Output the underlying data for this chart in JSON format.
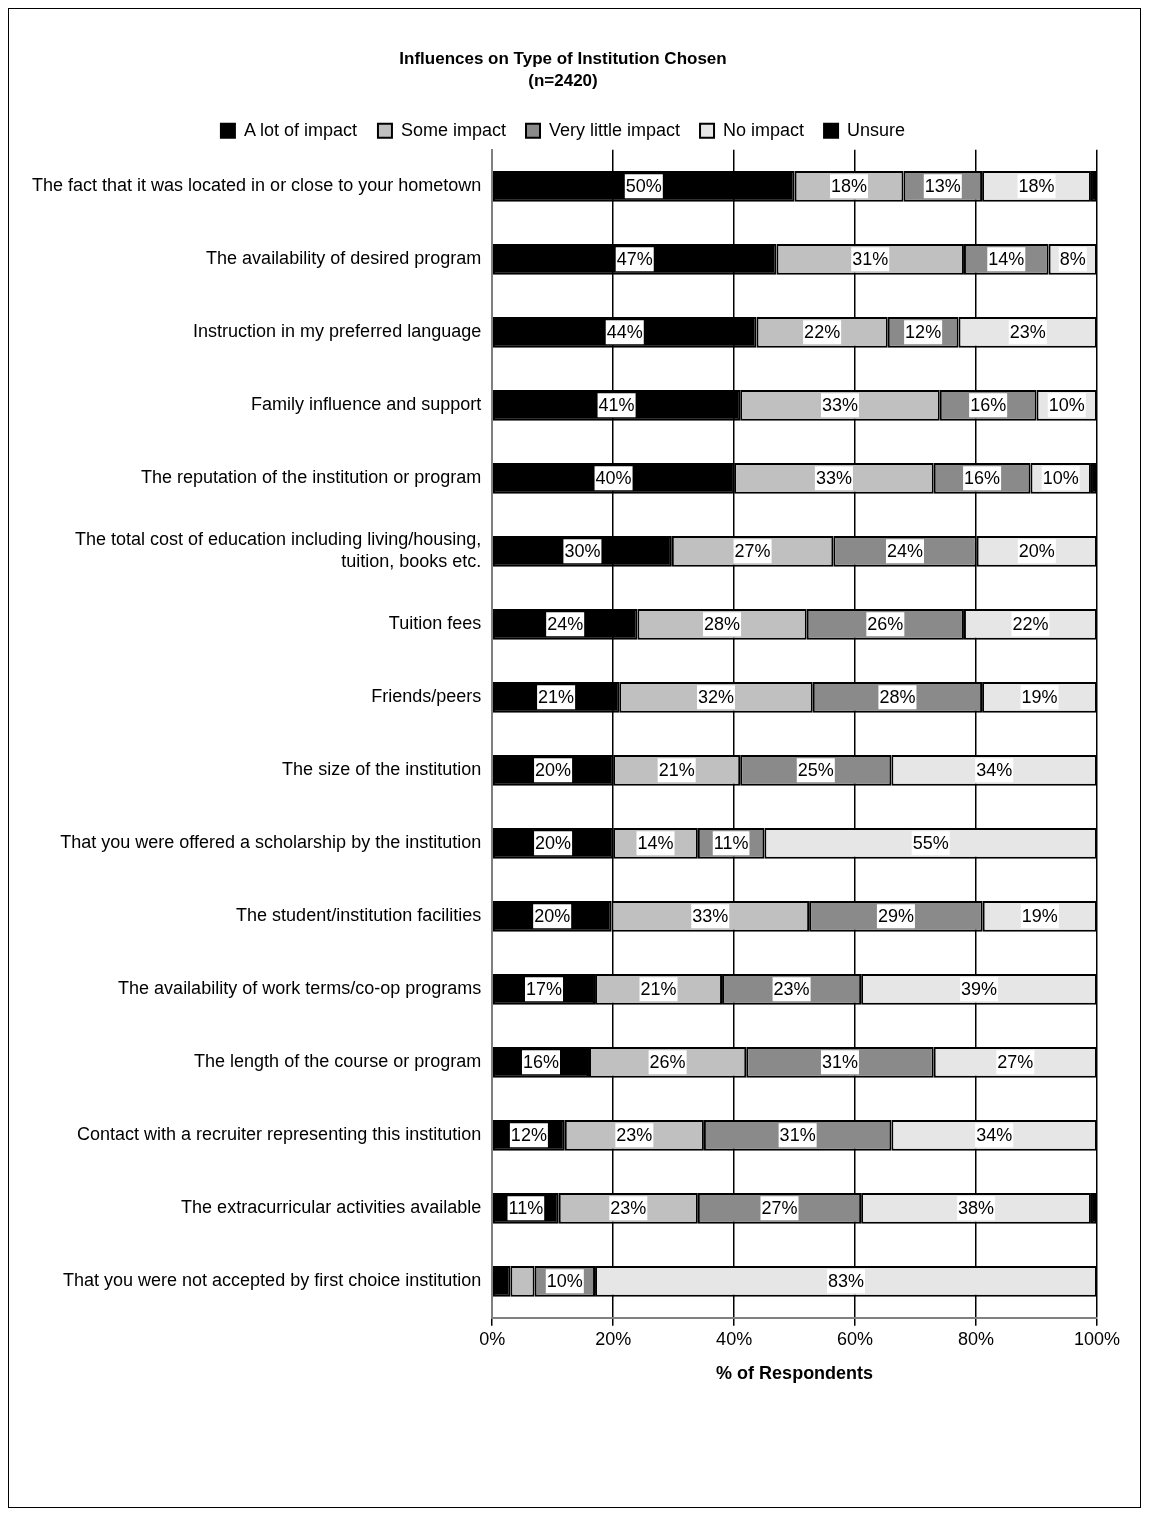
{
  "chart_data": {
    "type": "bar",
    "orientation": "horizontal",
    "stacked": true,
    "title": "Influences on Type of Institution Chosen",
    "subtitle": "(n=2420)",
    "xlabel": "% of Respondents",
    "categories": [
      "The fact that it was located in or close to your hometown",
      "The availability of desired program",
      "Instruction in my preferred language",
      "Family influence and support",
      "The reputation of the institution or program",
      "The total cost of education including living/housing, tuition, books etc.",
      "Tuition fees",
      "Friends/peers",
      "The size of the institution",
      "That you were offered a scholarship by the institution",
      "The student/institution facilities",
      "The availability of work terms/co-op programs",
      "The length of the course or program",
      "Contact with a recruiter representing this institution",
      "The extracurricular activities available",
      "That you were not accepted by first choice institution"
    ],
    "series": [
      {
        "name": "A lot of impact",
        "color": "#000000",
        "values": [
          50,
          47,
          43.7,
          41,
          40,
          29.7,
          24,
          21,
          20,
          20,
          19.7,
          17,
          16,
          12,
          11,
          3
        ],
        "value_labels": [
          "50%",
          "47%",
          "44%",
          "41%",
          "40%",
          "30%",
          "24%",
          "21%",
          "20%",
          "20%",
          "20%",
          "17%",
          "16%",
          "12%",
          "11%",
          null
        ]
      },
      {
        "name": "Some impact",
        "color": "#c0c0c0",
        "values": [
          18,
          31,
          21.7,
          33,
          33,
          26.7,
          28,
          32,
          21,
          14,
          32.7,
          21,
          26,
          23,
          23,
          4
        ],
        "value_labels": [
          "18%",
          "31%",
          "22%",
          "33%",
          "33%",
          "27%",
          "28%",
          "32%",
          "21%",
          "14%",
          "33%",
          "21%",
          "26%",
          "23%",
          "23%",
          null
        ]
      },
      {
        "name": "Very little impact",
        "color": "#8a8a8a",
        "values": [
          13,
          14,
          11.7,
          16,
          16,
          23.7,
          26,
          28,
          25,
          11,
          28.7,
          23,
          31,
          31,
          27,
          10
        ],
        "value_labels": [
          "13%",
          "14%",
          "12%",
          "16%",
          "16%",
          "24%",
          "26%",
          "28%",
          "25%",
          "11%",
          "29%",
          "23%",
          "31%",
          "31%",
          "27%",
          "10%"
        ]
      },
      {
        "name": "No impact",
        "color": "#e6e6e6",
        "values": [
          18,
          8,
          22.9,
          10,
          10,
          19.9,
          22,
          19,
          34,
          55,
          18.9,
          39,
          27,
          34,
          38,
          83
        ],
        "value_labels": [
          "18%",
          "8%",
          "23%",
          "10%",
          "10%",
          "20%",
          "22%",
          "19%",
          "34%",
          "55%",
          "19%",
          "39%",
          "27%",
          "34%",
          "38%",
          "83%"
        ]
      },
      {
        "name": "Unsure",
        "color": "#000000",
        "values": [
          1,
          0,
          0,
          0,
          1,
          0,
          0,
          0,
          0,
          0,
          0,
          0,
          0,
          0,
          1,
          0
        ],
        "value_labels": [
          null,
          null,
          null,
          null,
          null,
          null,
          null,
          null,
          null,
          null,
          null,
          null,
          null,
          null,
          null,
          null
        ]
      }
    ],
    "xlim": [
      0,
      100
    ],
    "xticks": [
      {
        "value": 0,
        "label": "0%"
      },
      {
        "value": 20,
        "label": "20%"
      },
      {
        "value": 40,
        "label": "40%"
      },
      {
        "value": 60,
        "label": "60%"
      },
      {
        "value": 80,
        "label": "80%"
      },
      {
        "value": 100,
        "label": "100%"
      }
    ],
    "grid": "x",
    "legend": "top"
  }
}
